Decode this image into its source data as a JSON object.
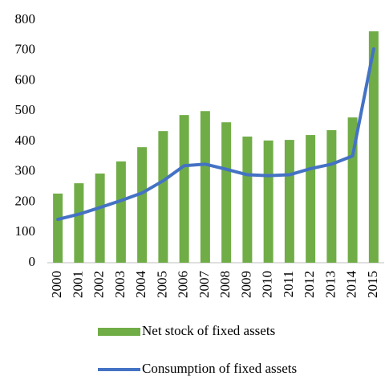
{
  "chart_data": {
    "type": "bar",
    "categories": [
      "2000",
      "2001",
      "2002",
      "2003",
      "2004",
      "2005",
      "2006",
      "2007",
      "2008",
      "2009",
      "2010",
      "2011",
      "2012",
      "2013",
      "2014",
      "2015"
    ],
    "series": [
      {
        "name": "Net stock of fixed assets",
        "type": "bar",
        "color": "#70ad47",
        "values": [
          228,
          262,
          294,
          334,
          381,
          434,
          487,
          500,
          463,
          416,
          403,
          405,
          421,
          437,
          479,
          763
        ]
      },
      {
        "name": "Consumption of fixed assets",
        "type": "line",
        "color": "#4472c4",
        "values": [
          143,
          160,
          182,
          205,
          230,
          270,
          320,
          325,
          308,
          290,
          287,
          290,
          310,
          325,
          352,
          705
        ]
      }
    ],
    "ylim": [
      0,
      800
    ],
    "yticks": [
      0,
      100,
      200,
      300,
      400,
      500,
      600,
      700,
      800
    ],
    "grid": false,
    "legend": "bottom"
  }
}
